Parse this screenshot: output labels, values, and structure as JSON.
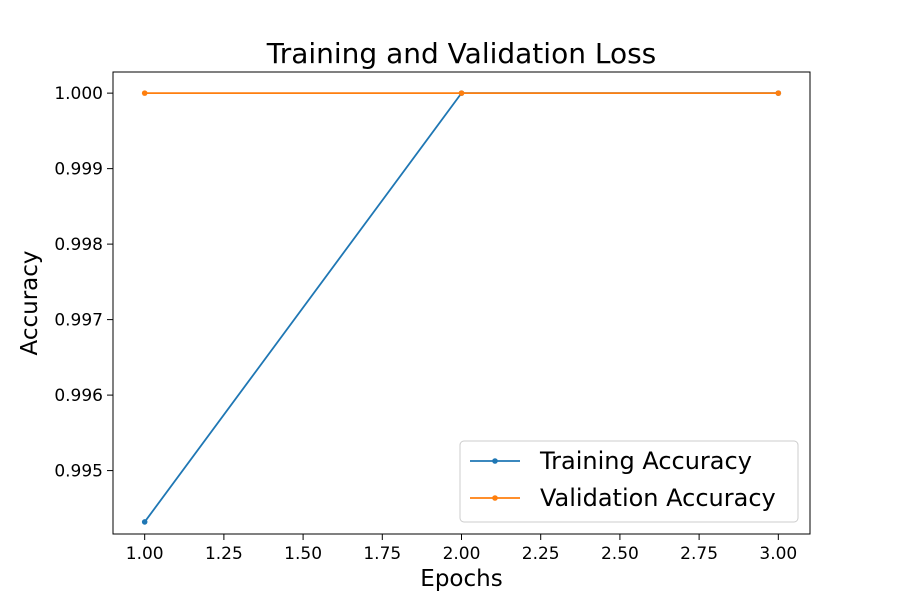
{
  "chart_data": {
    "type": "line",
    "title": "Training and Validation Loss",
    "xlabel": "Epochs",
    "ylabel": "Accuracy",
    "xlim": [
      0.9,
      3.1
    ],
    "ylim": [
      0.99416,
      1.00028
    ],
    "x_ticks": [
      1.0,
      1.25,
      1.5,
      1.75,
      2.0,
      2.25,
      2.5,
      2.75,
      3.0
    ],
    "x_tick_labels": [
      "1.00",
      "1.25",
      "1.50",
      "1.75",
      "2.00",
      "2.25",
      "2.50",
      "2.75",
      "3.00"
    ],
    "y_ticks": [
      0.995,
      0.996,
      0.997,
      0.998,
      0.999,
      1.0
    ],
    "y_tick_labels": [
      "0.995",
      "0.996",
      "0.997",
      "0.998",
      "0.999",
      "1.000"
    ],
    "grid": false,
    "legend_position": "lower-right",
    "series": [
      {
        "name": "Training Accuracy",
        "color": "#1f77b4",
        "marker": "point",
        "x": [
          1,
          2,
          3
        ],
        "y": [
          0.99432,
          1.0,
          1.0
        ]
      },
      {
        "name": "Validation Accuracy",
        "color": "#ff7f0e",
        "marker": "point",
        "x": [
          1,
          2,
          3
        ],
        "y": [
          1.0,
          1.0,
          1.0
        ]
      }
    ]
  }
}
